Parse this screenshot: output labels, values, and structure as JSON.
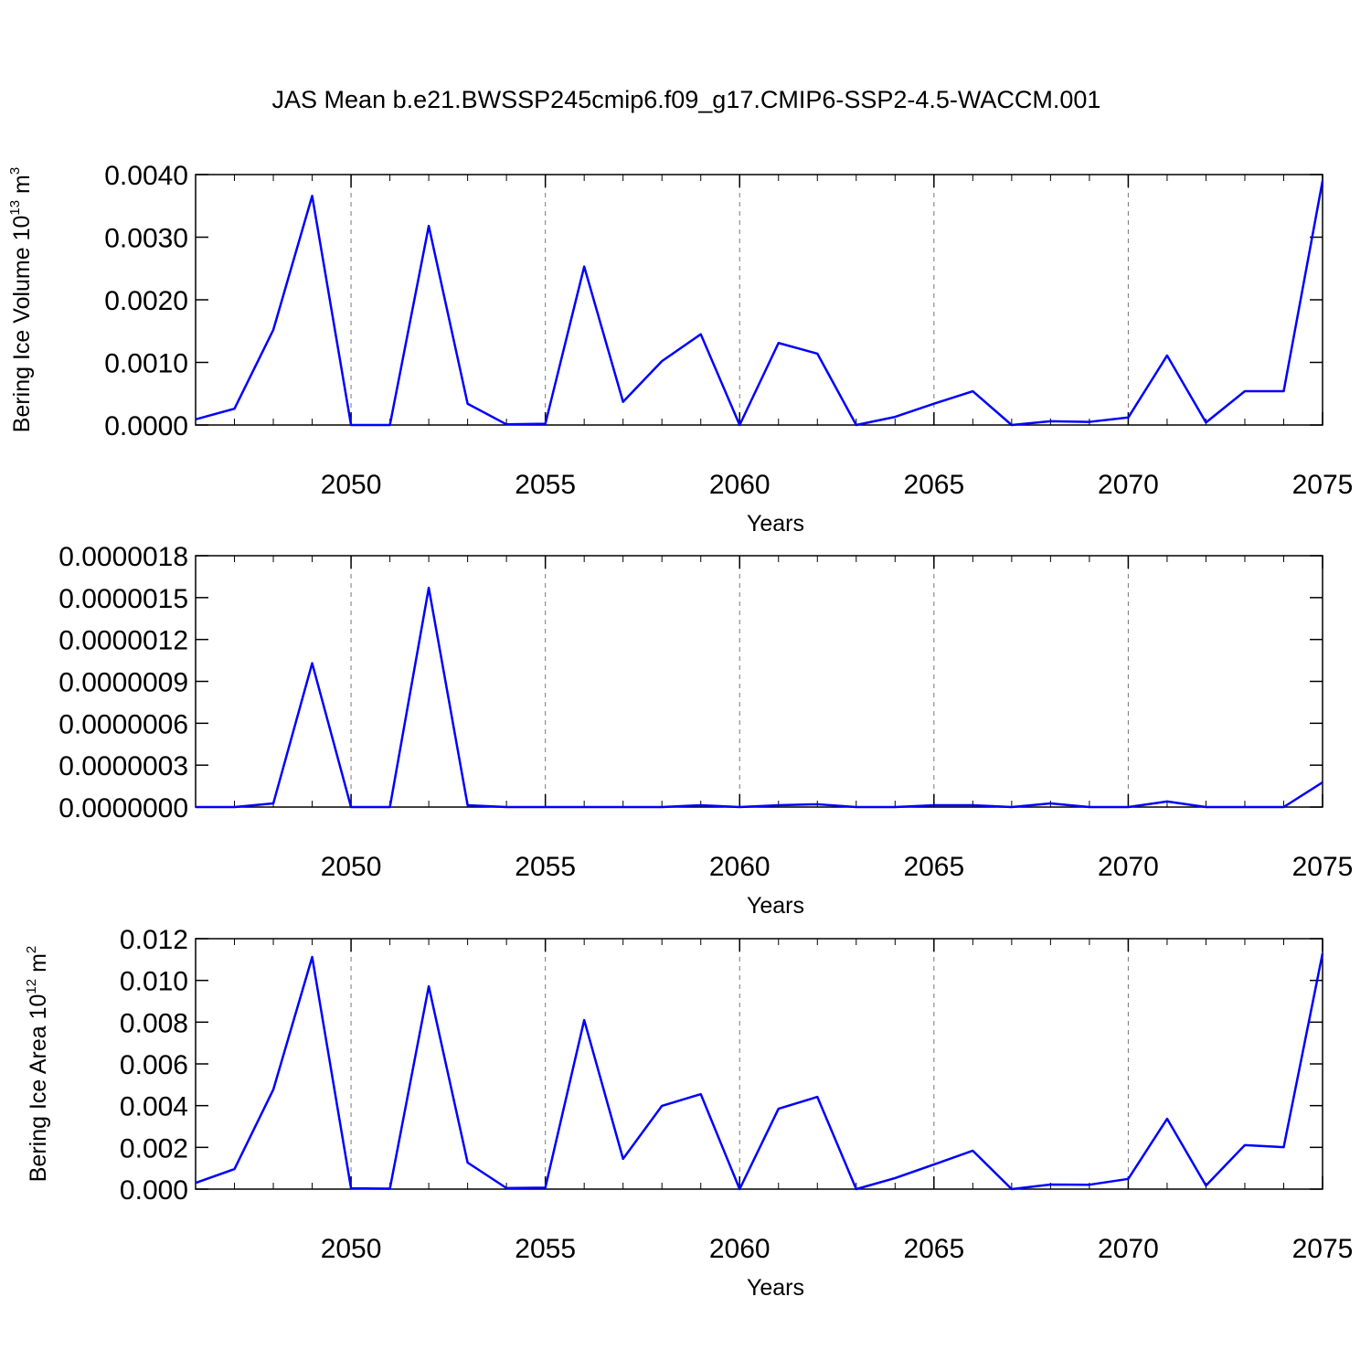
{
  "chart_data": [
    {
      "type": "line",
      "title": "JAS Mean b.e21.BWSSP245cmip6.f09_g17.CMIP6-SSP2-4.5-WACCM.001",
      "ylabel_parts": [
        {
          "text": "Bering Ice Volume 10",
          "sup": false
        },
        {
          "text": "13",
          "sup": true
        },
        {
          "text": " m",
          "sup": false
        },
        {
          "text": "3",
          "sup": true
        }
      ],
      "xlabel": "Years",
      "x": [
        2046,
        2047,
        2048,
        2049,
        2050,
        2051,
        2052,
        2053,
        2054,
        2055,
        2056,
        2057,
        2058,
        2059,
        2060,
        2061,
        2062,
        2063,
        2064,
        2065,
        2066,
        2067,
        2068,
        2069,
        2070,
        2071,
        2072,
        2073,
        2074,
        2075
      ],
      "series": [
        {
          "color": "#0000ff",
          "values": [
            9e-05,
            0.00026,
            0.00152,
            0.00366,
            0.0,
            0.0,
            0.00318,
            0.00034,
            1e-05,
            2e-05,
            0.00253,
            0.00037,
            0.00102,
            0.00145,
            0.0,
            0.00131,
            0.00114,
            0.0,
            0.00013,
            0.00034,
            0.00054,
            0.0,
            6e-05,
            5e-05,
            0.00012,
            0.00111,
            4e-05,
            0.00054,
            0.00054,
            0.0039
          ]
        }
      ],
      "xlim": [
        2046,
        2075
      ],
      "xticks": [
        2050,
        2055,
        2060,
        2065,
        2070,
        2075
      ],
      "ylim": [
        0,
        0.004
      ],
      "yticks": [
        {
          "value": 0,
          "label": "0.0000"
        },
        {
          "value": 0.001,
          "label": "0.0010"
        },
        {
          "value": 0.002,
          "label": "0.0020"
        },
        {
          "value": 0.003,
          "label": "0.0030"
        },
        {
          "value": 0.004,
          "label": "0.0040"
        }
      ],
      "grid": true
    },
    {
      "type": "line",
      "xlabel": "Years",
      "x": [
        2046,
        2047,
        2048,
        2049,
        2050,
        2051,
        2052,
        2053,
        2054,
        2055,
        2056,
        2057,
        2058,
        2059,
        2060,
        2061,
        2062,
        2063,
        2064,
        2065,
        2066,
        2067,
        2068,
        2069,
        2070,
        2071,
        2072,
        2073,
        2074,
        2075
      ],
      "series": [
        {
          "color": "#0000ff",
          "values": [
            0,
            0,
            2.6e-08,
            1.03e-06,
            0,
            0,
            1.57e-06,
            1.3e-08,
            0,
            0,
            0,
            0,
            0,
            1.3e-08,
            0,
            1.3e-08,
            2e-08,
            0,
            0,
            1.3e-08,
            1.3e-08,
            0,
            2.6e-08,
            0,
            0,
            4e-08,
            0,
            0,
            0,
            1.77e-07
          ]
        }
      ],
      "xlim": [
        2046,
        2075
      ],
      "xticks": [
        2050,
        2055,
        2060,
        2065,
        2070,
        2075
      ],
      "ylim": [
        0,
        1.8e-06
      ],
      "yticks": [
        {
          "value": 0,
          "label": "0.0000000"
        },
        {
          "value": 3e-07,
          "label": "0.0000003"
        },
        {
          "value": 6e-07,
          "label": "0.0000006"
        },
        {
          "value": 9e-07,
          "label": "0.0000009"
        },
        {
          "value": 1.2e-06,
          "label": "0.0000012"
        },
        {
          "value": 1.5e-06,
          "label": "0.0000015"
        },
        {
          "value": 1.8e-06,
          "label": "0.0000018"
        }
      ],
      "grid": true
    },
    {
      "type": "line",
      "ylabel_parts": [
        {
          "text": "Bering Ice Area 10",
          "sup": false
        },
        {
          "text": "12",
          "sup": true
        },
        {
          "text": " m",
          "sup": false
        },
        {
          "text": "2",
          "sup": true
        }
      ],
      "xlabel": "Years",
      "x": [
        2046,
        2047,
        2048,
        2049,
        2050,
        2051,
        2052,
        2053,
        2054,
        2055,
        2056,
        2057,
        2058,
        2059,
        2060,
        2061,
        2062,
        2063,
        2064,
        2065,
        2066,
        2067,
        2068,
        2069,
        2070,
        2071,
        2072,
        2073,
        2074,
        2075
      ],
      "series": [
        {
          "color": "#0000ff",
          "values": [
            0.0003,
            0.00096,
            0.00477,
            0.01112,
            4e-05,
            2e-05,
            0.00972,
            0.00127,
            5e-05,
            7e-05,
            0.0081,
            0.00145,
            0.00399,
            0.00455,
            0.0,
            0.00385,
            0.00442,
            0.0,
            0.00053,
            0.00118,
            0.00184,
            0.0,
            0.00022,
            0.00021,
            0.00049,
            0.00337,
            0.00017,
            0.00211,
            0.00201,
            0.0113
          ]
        }
      ],
      "xlim": [
        2046,
        2075
      ],
      "xticks": [
        2050,
        2055,
        2060,
        2065,
        2070,
        2075
      ],
      "ylim": [
        0,
        0.012
      ],
      "yticks": [
        {
          "value": 0,
          "label": "0.000"
        },
        {
          "value": 0.002,
          "label": "0.002"
        },
        {
          "value": 0.004,
          "label": "0.004"
        },
        {
          "value": 0.006,
          "label": "0.006"
        },
        {
          "value": 0.008,
          "label": "0.008"
        },
        {
          "value": 0.01,
          "label": "0.010"
        },
        {
          "value": 0.012,
          "label": "0.012"
        }
      ],
      "grid": true
    }
  ]
}
